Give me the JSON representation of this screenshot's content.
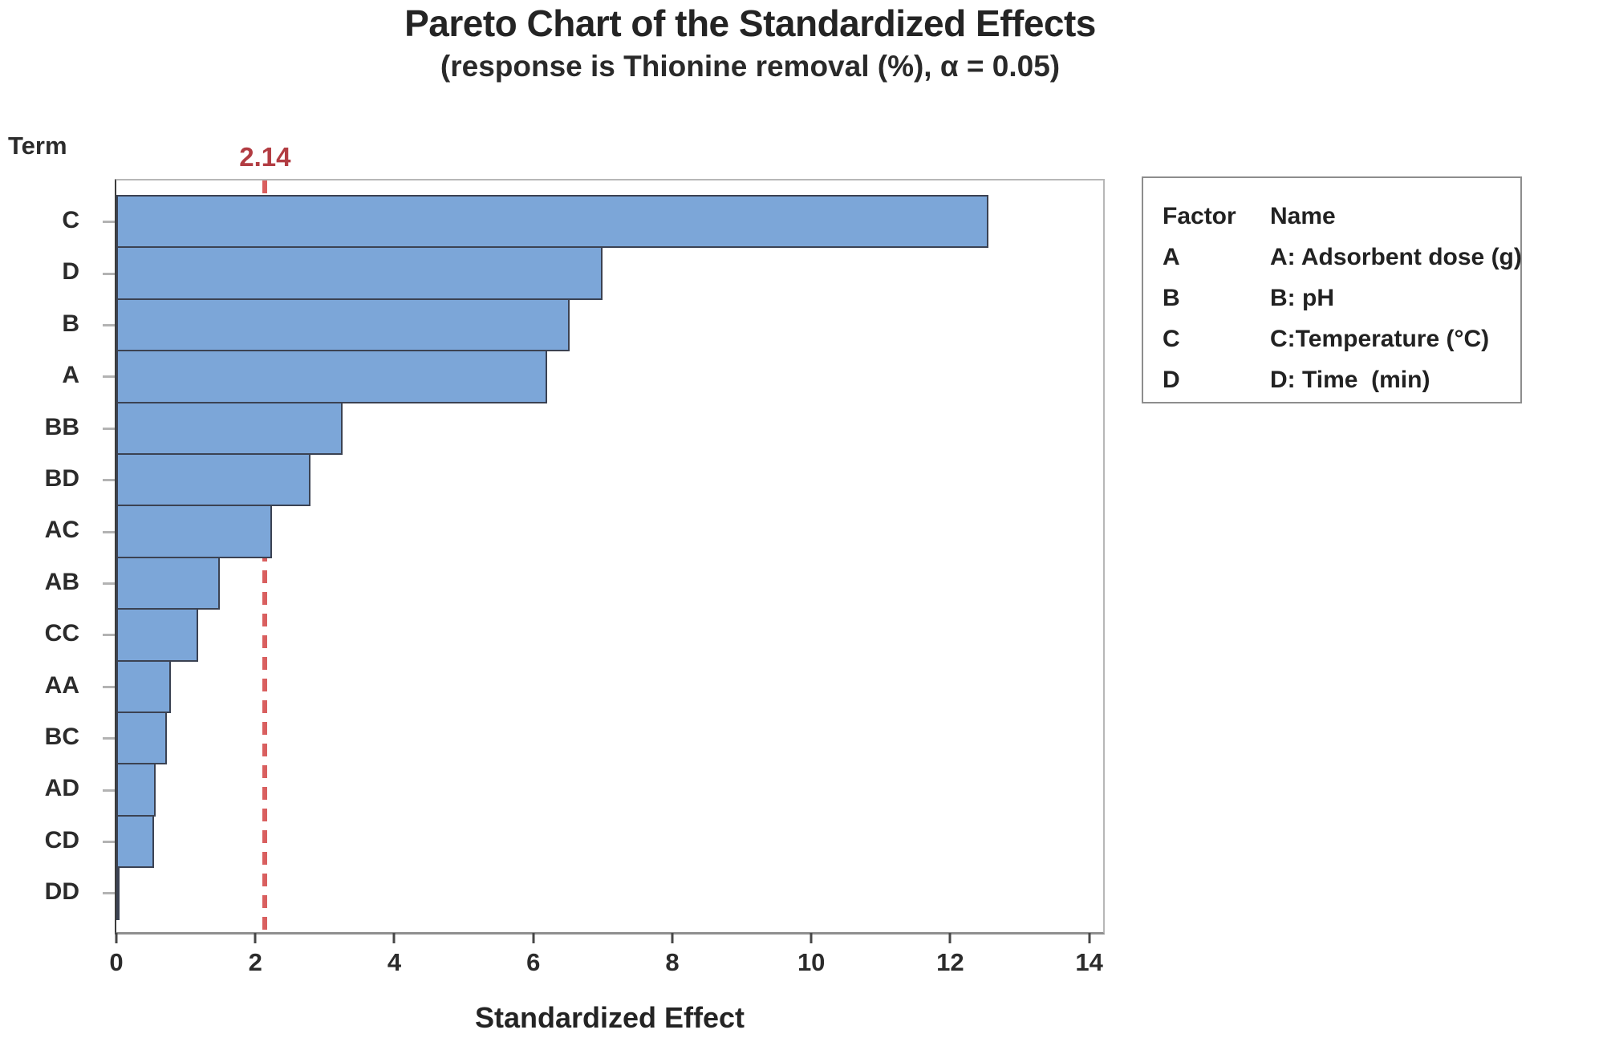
{
  "chart_data": {
    "type": "bar",
    "orientation": "horizontal",
    "title": "Pareto Chart of the Standardized Effects",
    "subtitle": "(response is Thionine removal (%), α = 0.05)",
    "xlabel": "Standardized Effect",
    "ylabel": "Term",
    "categories": [
      "C",
      "D",
      "B",
      "A",
      "BB",
      "BD",
      "AC",
      "AB",
      "CC",
      "AA",
      "BC",
      "AD",
      "CD",
      "DD"
    ],
    "values": [
      12.55,
      7.0,
      6.52,
      6.2,
      3.26,
      2.79,
      2.24,
      1.49,
      1.18,
      0.79,
      0.73,
      0.56,
      0.54,
      0.02
    ],
    "xlim": [
      0,
      14.2
    ],
    "x_ticks": [
      0,
      2,
      4,
      6,
      8,
      10,
      12,
      14
    ],
    "reference_line": {
      "value": 2.14,
      "label": "2.14"
    },
    "grid": false,
    "legend_position": "right",
    "colors": {
      "bar_fill": "#7ca6d8",
      "bar_border": "#3b4252",
      "ref_line": "#d95f5f",
      "ref_label": "#b23c42"
    }
  },
  "legend": {
    "col1_header": "Factor",
    "col2_header": "Name",
    "rows": [
      {
        "factor": "A",
        "name": "A: Adsorbent dose (g)"
      },
      {
        "factor": "B",
        "name": "B: pH"
      },
      {
        "factor": "C",
        "name": "C:Temperature (°C)"
      },
      {
        "factor": "D",
        "name": "D: Time  (min)"
      }
    ]
  }
}
